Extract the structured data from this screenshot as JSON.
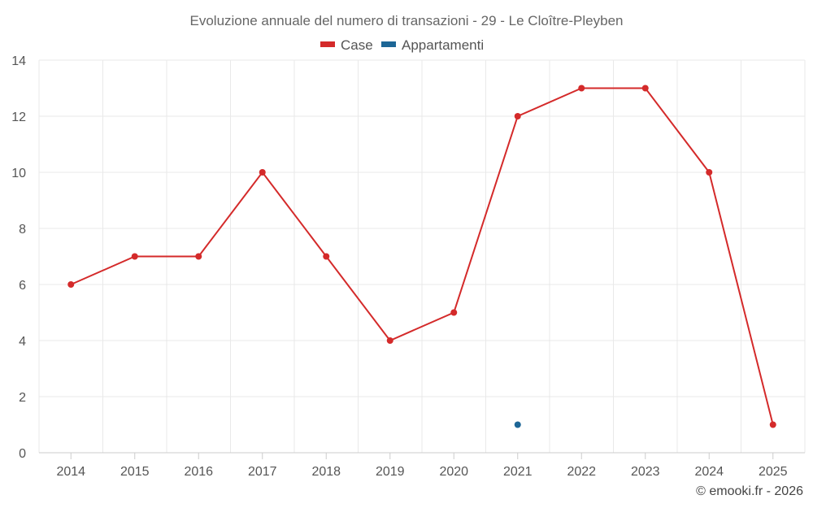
{
  "chart_data": {
    "type": "line",
    "title": "Evoluzione annuale del numero di transazioni - 29 - Le Cloître-Pleyben",
    "categories": [
      "2014",
      "2015",
      "2016",
      "2017",
      "2018",
      "2019",
      "2020",
      "2021",
      "2022",
      "2023",
      "2024",
      "2025"
    ],
    "series": [
      {
        "name": "Case",
        "color": "#d42a2a",
        "values": [
          6,
          7,
          7,
          10,
          7,
          4,
          5,
          12,
          13,
          13,
          10,
          1
        ]
      },
      {
        "name": "Appartamenti",
        "color": "#1d6696",
        "values": [
          null,
          null,
          null,
          null,
          null,
          null,
          null,
          1,
          null,
          null,
          null,
          null
        ]
      }
    ],
    "ylim": [
      0,
      14
    ],
    "yticks": [
      0,
      2,
      4,
      6,
      8,
      10,
      12,
      14
    ],
    "grid": true,
    "legend": "top-center",
    "xlabel": "",
    "ylabel": ""
  },
  "credit": "© emooki.fr - 2026"
}
